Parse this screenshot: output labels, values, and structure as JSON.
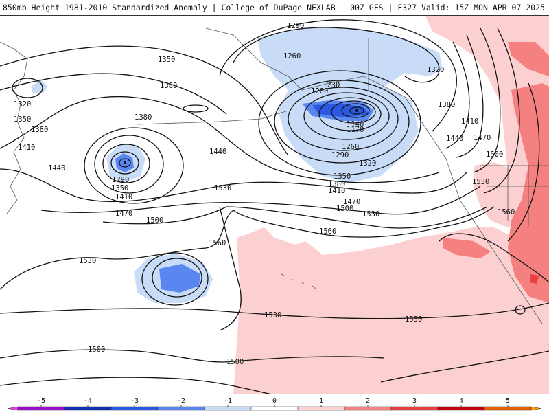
{
  "header": {
    "title_left": "850mb Height 1981-2010 Standardized Anomaly | College of DuPage NEXLAB",
    "title_right": "00Z GFS | F327 Valid: 15Z MON APR 07 2025"
  },
  "map": {
    "contour_labels": [
      {
        "id": "lbl-1290-top",
        "text": "1290"
      },
      {
        "id": "lbl-1260-top",
        "text": "1260"
      },
      {
        "id": "lbl-1230",
        "text": "1230"
      },
      {
        "id": "lbl-1200",
        "text": "1200"
      },
      {
        "id": "lbl-1140",
        "text": "1140"
      },
      {
        "id": "lbl-1170",
        "text": "1170"
      },
      {
        "id": "lbl-1260-mid",
        "text": "1260"
      },
      {
        "id": "lbl-1290-mid",
        "text": "1290"
      },
      {
        "id": "lbl-1320-mid",
        "text": "1320"
      },
      {
        "id": "lbl-1350-mid",
        "text": "1350"
      },
      {
        "id": "lbl-1380-mid",
        "text": "1380"
      },
      {
        "id": "lbl-1410-mid",
        "text": "1410"
      },
      {
        "id": "lbl-1470-mid",
        "text": "1470"
      },
      {
        "id": "lbl-1500-mid",
        "text": "1500"
      },
      {
        "id": "lbl-1530-mid",
        "text": "1530"
      },
      {
        "id": "lbl-1320-ne",
        "text": "1320"
      },
      {
        "id": "lbl-1380-ne",
        "text": "1380"
      },
      {
        "id": "lbl-1410-ne",
        "text": "1410"
      },
      {
        "id": "lbl-1440-ne",
        "text": "1440"
      },
      {
        "id": "lbl-1470-ne",
        "text": "1470"
      },
      {
        "id": "lbl-1500-ne",
        "text": "1500"
      },
      {
        "id": "lbl-1530-ne",
        "text": "1530"
      },
      {
        "id": "lbl-1560-ne",
        "text": "1560"
      },
      {
        "id": "lbl-1350-w",
        "text": "1350"
      },
      {
        "id": "lbl-1380-w",
        "text": "1380"
      },
      {
        "id": "lbl-1380-w2",
        "text": "1380"
      },
      {
        "id": "lbl-1320-w",
        "text": "1320"
      },
      {
        "id": "lbl-1350-w2",
        "text": "1350"
      },
      {
        "id": "lbl-1380-w3",
        "text": "1380"
      },
      {
        "id": "lbl-1410-w",
        "text": "1410"
      },
      {
        "id": "lbl-1440-w",
        "text": "1440"
      },
      {
        "id": "lbl-1290-low",
        "text": "1290"
      },
      {
        "id": "lbl-1350-low",
        "text": "1350"
      },
      {
        "id": "lbl-1410-low",
        "text": "1410"
      },
      {
        "id": "lbl-1440-c",
        "text": "1440"
      },
      {
        "id": "lbl-1470-c",
        "text": "1470"
      },
      {
        "id": "lbl-1500-c",
        "text": "1500"
      },
      {
        "id": "lbl-1530-c",
        "text": "1530"
      },
      {
        "id": "lbl-1560-c",
        "text": "1560"
      },
      {
        "id": "lbl-1560-c2",
        "text": "1560"
      },
      {
        "id": "lbl-1530-sw",
        "text": "1530"
      },
      {
        "id": "lbl-1530-s",
        "text": "1530"
      },
      {
        "id": "lbl-1530-s2",
        "text": "1530"
      },
      {
        "id": "lbl-1500-s",
        "text": "1500"
      },
      {
        "id": "lbl-1500-s2",
        "text": "1500"
      }
    ]
  },
  "colorbar": {
    "ticks": [
      "-5",
      "-4",
      "-3",
      "-2",
      "-1",
      "0",
      "1",
      "2",
      "3",
      "4",
      "5"
    ],
    "colors": [
      "#e040e0",
      "#9a10c8",
      "#1030b0",
      "#2a58e0",
      "#5a86f0",
      "#c8dcf8",
      "#ffffff",
      "#fcd0d0",
      "#f48080",
      "#e84040",
      "#c00010",
      "#e06000",
      "#ffa000"
    ]
  }
}
